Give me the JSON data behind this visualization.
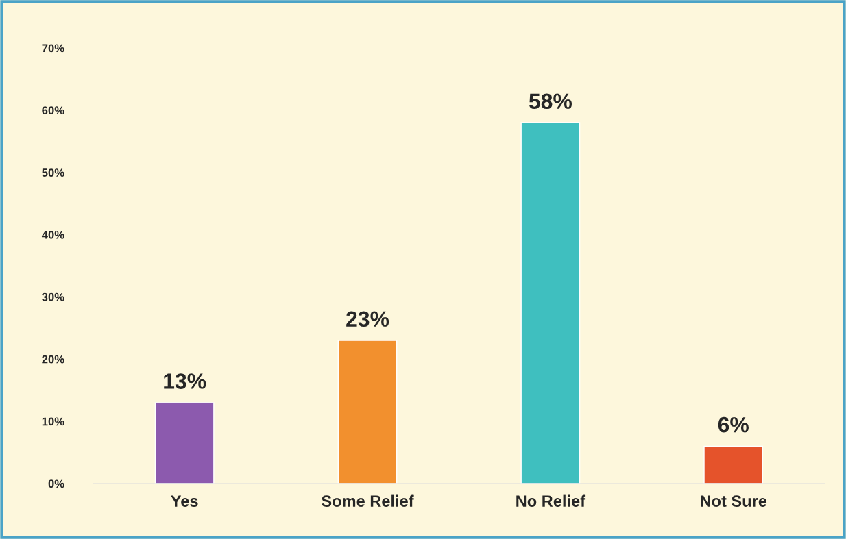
{
  "chart_data": {
    "type": "bar",
    "categories": [
      "Yes",
      "Some Relief",
      "No Relief",
      "Not Sure"
    ],
    "values": [
      13,
      23,
      58,
      6
    ],
    "colors": [
      "#8c5aae",
      "#f2902e",
      "#3fbfbf",
      "#e5532b"
    ],
    "value_labels": [
      "13%",
      "23%",
      "58%",
      "6%"
    ],
    "ylim": [
      0,
      70
    ],
    "yticks": [
      {
        "value": 0,
        "label": "0%"
      },
      {
        "value": 10,
        "label": "10%"
      },
      {
        "value": 20,
        "label": "20%"
      },
      {
        "value": 30,
        "label": "30%"
      },
      {
        "value": 40,
        "label": "40%"
      },
      {
        "value": 50,
        "label": "50%"
      },
      {
        "value": 60,
        "label": "60%"
      },
      {
        "value": 70,
        "label": "70%"
      }
    ],
    "grid": false,
    "legend": false
  }
}
